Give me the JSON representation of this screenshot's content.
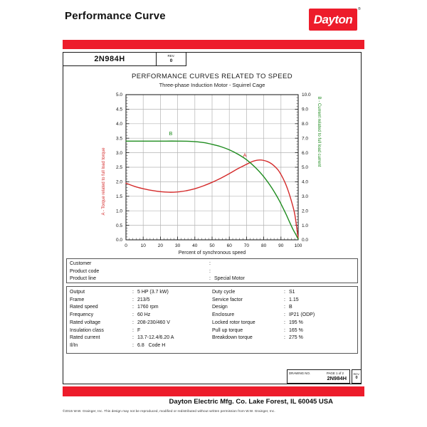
{
  "separator": ":",
  "colors": {
    "accent_red": "#ed1c2b",
    "curve_red": "#d42a2a",
    "curve_green": "#1f8c1f",
    "grid": "#b4b4b4"
  },
  "header": {
    "title": "Performance Curve",
    "brand": "Dayton",
    "brand_reg": "®"
  },
  "title_block": {
    "model": "2N984H",
    "rev_label": "REV.",
    "rev_value": "0"
  },
  "chart_data": {
    "type": "line",
    "title": "PERFORMANCE CURVES RELATED TO SPEED",
    "subtitle": "Three-phase Induction Motor - Squirrel Cage",
    "xlabel": "Percent of synchronous speed",
    "ylabel_left": "A - Torque related to full load torque",
    "ylabel_right": "B - Current related to full load current",
    "xlim": [
      0,
      100
    ],
    "ylim_left": [
      0,
      5
    ],
    "ylim_right": [
      0,
      10
    ],
    "grid": true,
    "x_ticks": [
      0,
      10,
      20,
      30,
      40,
      50,
      60,
      70,
      80,
      90,
      100
    ],
    "y_ticks_left": [
      0.0,
      0.5,
      1.0,
      1.5,
      2.0,
      2.5,
      3.0,
      3.5,
      4.0,
      4.5,
      5.0
    ],
    "y_ticks_right": [
      0.0,
      1.0,
      2.0,
      3.0,
      4.0,
      5.0,
      6.0,
      7.0,
      8.0,
      9.0,
      10.0
    ],
    "series": [
      {
        "name": "A",
        "axis": "left",
        "color": "#d42a2a",
        "label_pos": {
          "x": 69,
          "y": 2.85
        },
        "points": [
          [
            0,
            1.95
          ],
          [
            5,
            1.84
          ],
          [
            10,
            1.76
          ],
          [
            15,
            1.7
          ],
          [
            20,
            1.66
          ],
          [
            25,
            1.64
          ],
          [
            30,
            1.65
          ],
          [
            35,
            1.69
          ],
          [
            40,
            1.76
          ],
          [
            45,
            1.86
          ],
          [
            50,
            1.98
          ],
          [
            55,
            2.12
          ],
          [
            60,
            2.28
          ],
          [
            65,
            2.45
          ],
          [
            70,
            2.6
          ],
          [
            74,
            2.71
          ],
          [
            78,
            2.75
          ],
          [
            82,
            2.7
          ],
          [
            85,
            2.6
          ],
          [
            88,
            2.43
          ],
          [
            90,
            2.25
          ],
          [
            92,
            2.02
          ],
          [
            94,
            1.72
          ],
          [
            96,
            1.35
          ],
          [
            98,
            0.88
          ],
          [
            100,
            0.05
          ]
        ]
      },
      {
        "name": "B",
        "axis": "right",
        "color": "#1f8c1f",
        "label_pos": {
          "x": 26,
          "y": 7.2
        },
        "points": [
          [
            0,
            6.8
          ],
          [
            10,
            6.8
          ],
          [
            20,
            6.8
          ],
          [
            30,
            6.8
          ],
          [
            38,
            6.78
          ],
          [
            45,
            6.7
          ],
          [
            50,
            6.58
          ],
          [
            55,
            6.42
          ],
          [
            60,
            6.2
          ],
          [
            65,
            5.9
          ],
          [
            70,
            5.52
          ],
          [
            75,
            5.0
          ],
          [
            80,
            4.35
          ],
          [
            85,
            3.52
          ],
          [
            88,
            2.92
          ],
          [
            90,
            2.48
          ],
          [
            93,
            1.75
          ],
          [
            95,
            1.22
          ],
          [
            97,
            0.72
          ],
          [
            99,
            0.28
          ],
          [
            100,
            0.05
          ]
        ]
      }
    ]
  },
  "customer_block": {
    "rows": [
      {
        "label": "Customer",
        "value": ""
      },
      {
        "label": "Product code",
        "value": ""
      },
      {
        "label": "Product line",
        "value": "Special Motor"
      }
    ]
  },
  "spec_block": {
    "left": [
      {
        "label": "Output",
        "value": "5 HP (3.7 kW)"
      },
      {
        "label": "Frame",
        "value": "213/5"
      },
      {
        "label": "Rated speed",
        "value": "1760 rpm"
      },
      {
        "label": "Frequency",
        "value": "60 Hz"
      },
      {
        "label": "Rated voltage",
        "value": "208-230/460 V"
      },
      {
        "label": "Insulation class",
        "value": "F"
      },
      {
        "label": "Rated current",
        "value": "13.7-12.4/6.20 A"
      },
      {
        "label": "Il/In",
        "value": "6.8   Code H"
      }
    ],
    "right": [
      {
        "label": "Duty cycle",
        "value": "S1"
      },
      {
        "label": "Service factor",
        "value": "1.15"
      },
      {
        "label": "Design",
        "value": "B"
      },
      {
        "label": "Enclosure",
        "value": "IP21 (ODP)"
      },
      {
        "label": "Locked rotor torque",
        "value": "195 %"
      },
      {
        "label": "Pull up torque",
        "value": "165 %"
      },
      {
        "label": "Breakdown torque",
        "value": "275 %"
      }
    ]
  },
  "drawing_block": {
    "drawing_no_label": "DRAWING NO.",
    "page_label": "PAGE 1 of 2",
    "drawing_no": "2N984H",
    "rev_label": "REV.",
    "rev_value": "0"
  },
  "footer": {
    "company_line": "Dayton Electric Mfg. Co.   Lake Forest, IL  60045  USA",
    "copyright": "©2015 W.W. Grainger, Inc.    This design may not be reproduced, modified or redistributed without written permission from W.W. Grainger, Inc."
  }
}
